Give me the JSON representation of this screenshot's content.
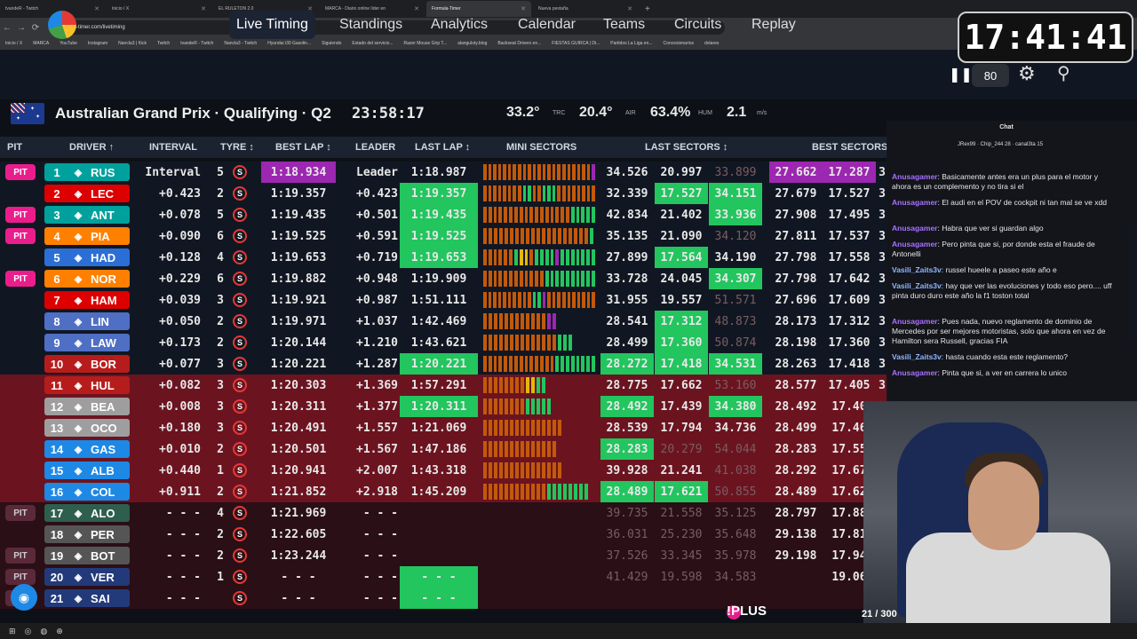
{
  "browser": {
    "tabs": [
      {
        "label": "tvandeR - Twitch",
        "active": false
      },
      {
        "label": "Inicio / X",
        "active": false
      },
      {
        "label": "EL RULETON 2.0",
        "active": false
      },
      {
        "label": "MARCA - Diario online líder en",
        "active": false
      },
      {
        "label": "Formula-Timer",
        "active": true
      },
      {
        "label": "Nueva pestaña",
        "active": false
      }
    ],
    "url": "formula-timer.com/livetiming",
    "bookmarks": [
      "Inicio / X",
      "MARCA",
      "YouTube",
      "Instagram",
      "Nancla3 | Kick",
      "Twitch",
      "tvandeR - Twitch",
      "Nancla3 - Twitch",
      "Hyundai i30 Gasolin...",
      "Siguiendo",
      "Estado del servicio...",
      "Razer Mouse Grip T...",
      "alanguloty.blog",
      "Backseat Drivers en...",
      "FIESTAS GUIRCA | Di...",
      "Partidos La Liga en...",
      "Concesionarios",
      "dolares"
    ]
  },
  "overlay_clock": "17:41:41",
  "app": {
    "nav": [
      "Live Timing",
      "Standings",
      "Analytics",
      "Calendar",
      "Teams",
      "Circuits",
      "Replay"
    ],
    "active_nav": "Live Timing",
    "playback_rate": "80"
  },
  "session": {
    "name": "Australian Grand Prix · Qualifying · Q2",
    "remaining": "23:58:17",
    "track_temp": "33.2°",
    "track_label": "TRC",
    "air_temp": "20.4°",
    "air_label": "AIR",
    "humidity": "63.4%",
    "hum_label": "HUM",
    "wind": "2.1",
    "wind_label": "m/s"
  },
  "columns": {
    "pit": "PIT",
    "driver": "DRIVER ↑",
    "interval": "INTERVAL",
    "tyre": "TYRE ↕",
    "best": "BEST LAP ↕",
    "leader": "LEADER",
    "last": "LAST LAP ↕",
    "mini": "MINI SECTORS",
    "last_sectors": "LAST SECTORS ↕",
    "best_sectors": "BEST SECTORS"
  },
  "rows": [
    {
      "pit": "PIT",
      "pos": "1",
      "code": "RUS",
      "team": "#00a19c",
      "int": "Interval",
      "tyre": "5",
      "best": "1:18.934",
      "bestPurple": true,
      "lead": "Leader",
      "last": "1:18.987",
      "lastGreen": false,
      "ls": [
        "34.526",
        "20.997",
        "33.899"
      ],
      "lsc": [
        "",
        "",
        "dim"
      ],
      "bs": [
        "27.662",
        "17.287",
        "3"
      ],
      "bsc": [
        "purple",
        "purple",
        ""
      ],
      "status": "norm"
    },
    {
      "pit": "",
      "pos": "2",
      "code": "LEC",
      "team": "#dc0000",
      "int": "+0.423",
      "tyre": "2",
      "best": "1:19.357",
      "lead": "+0.423",
      "last": "1:19.357",
      "lastGreen": true,
      "ls": [
        "32.339",
        "17.527",
        "34.151"
      ],
      "lsc": [
        "",
        "green",
        "green"
      ],
      "bs": [
        "27.679",
        "17.527",
        "3"
      ],
      "bsc": [
        "",
        "",
        ""
      ],
      "status": "norm"
    },
    {
      "pit": "PIT",
      "pos": "3",
      "code": "ANT",
      "team": "#00a19c",
      "int": "+0.078",
      "tyre": "5",
      "best": "1:19.435",
      "lead": "+0.501",
      "last": "1:19.435",
      "lastGreen": true,
      "ls": [
        "42.834",
        "21.402",
        "33.936"
      ],
      "lsc": [
        "",
        "",
        "green"
      ],
      "bs": [
        "27.908",
        "17.495",
        "3"
      ],
      "bsc": [
        "",
        "",
        ""
      ],
      "status": "norm"
    },
    {
      "pit": "PIT",
      "pos": "4",
      "code": "PIA",
      "team": "#ff8000",
      "int": "+0.090",
      "tyre": "6",
      "best": "1:19.525",
      "lead": "+0.591",
      "last": "1:19.525",
      "lastGreen": true,
      "ls": [
        "35.135",
        "21.090",
        "34.120"
      ],
      "lsc": [
        "",
        "",
        "dim"
      ],
      "bs": [
        "27.811",
        "17.537",
        "3"
      ],
      "bsc": [
        "",
        "",
        ""
      ],
      "status": "norm"
    },
    {
      "pit": "",
      "pos": "5",
      "code": "HAD",
      "team": "#2b6fd6",
      "int": "+0.128",
      "tyre": "4",
      "best": "1:19.653",
      "lead": "+0.719",
      "last": "1:19.653",
      "lastGreen": true,
      "ls": [
        "27.899",
        "17.564",
        "34.190"
      ],
      "lsc": [
        "",
        "green",
        ""
      ],
      "bs": [
        "27.798",
        "17.558",
        "3"
      ],
      "bsc": [
        "",
        "",
        ""
      ],
      "status": "norm"
    },
    {
      "pit": "PIT",
      "pos": "6",
      "code": "NOR",
      "team": "#ff8000",
      "int": "+0.229",
      "tyre": "6",
      "best": "1:19.882",
      "lead": "+0.948",
      "last": "1:19.909",
      "lastGreen": false,
      "ls": [
        "33.728",
        "24.045",
        "34.307"
      ],
      "lsc": [
        "",
        "",
        "green"
      ],
      "bs": [
        "27.798",
        "17.642",
        "3"
      ],
      "bsc": [
        "",
        "",
        ""
      ],
      "status": "norm"
    },
    {
      "pit": "",
      "pos": "7",
      "code": "HAM",
      "team": "#dc0000",
      "int": "+0.039",
      "tyre": "3",
      "best": "1:19.921",
      "lead": "+0.987",
      "last": "1:51.111",
      "lastGreen": false,
      "ls": [
        "31.955",
        "19.557",
        "51.571"
      ],
      "lsc": [
        "",
        "",
        "dim"
      ],
      "bs": [
        "27.696",
        "17.609",
        "3"
      ],
      "bsc": [
        "",
        "",
        ""
      ],
      "status": "norm"
    },
    {
      "pit": "",
      "pos": "8",
      "code": "LIN",
      "team": "#4f6fc4",
      "int": "+0.050",
      "tyre": "2",
      "best": "1:19.971",
      "lead": "+1.037",
      "last": "1:42.469",
      "lastGreen": false,
      "ls": [
        "28.541",
        "17.312",
        "48.873"
      ],
      "lsc": [
        "",
        "green",
        "dim"
      ],
      "bs": [
        "28.173",
        "17.312",
        "3"
      ],
      "bsc": [
        "",
        "",
        ""
      ],
      "status": "norm"
    },
    {
      "pit": "",
      "pos": "9",
      "code": "LAW",
      "team": "#4f6fc4",
      "int": "+0.173",
      "tyre": "2",
      "best": "1:20.144",
      "lead": "+1.210",
      "last": "1:43.621",
      "lastGreen": false,
      "ls": [
        "28.499",
        "17.360",
        "50.874"
      ],
      "lsc": [
        "",
        "green",
        "dim"
      ],
      "bs": [
        "28.198",
        "17.360",
        "3"
      ],
      "bsc": [
        "",
        "",
        ""
      ],
      "status": "norm"
    },
    {
      "pit": "",
      "pos": "10",
      "code": "BOR",
      "team": "#b71c1c",
      "int": "+0.077",
      "tyre": "3",
      "best": "1:20.221",
      "lead": "+1.287",
      "last": "1:20.221",
      "lastGreen": true,
      "ls": [
        "28.272",
        "17.418",
        "34.531"
      ],
      "lsc": [
        "green",
        "green",
        "green"
      ],
      "bs": [
        "28.263",
        "17.418",
        "3"
      ],
      "bsc": [
        "",
        "",
        ""
      ],
      "status": "norm"
    },
    {
      "pit": "",
      "pos": "11",
      "code": "HUL",
      "team": "#b71c1c",
      "int": "+0.082",
      "tyre": "3",
      "best": "1:20.303",
      "lead": "+1.369",
      "last": "1:57.291",
      "lastGreen": false,
      "ls": [
        "28.775",
        "17.662",
        "53.160"
      ],
      "lsc": [
        "",
        "",
        "dim"
      ],
      "bs": [
        "28.577",
        "17.405",
        "3"
      ],
      "bsc": [
        "",
        "",
        ""
      ],
      "status": "elim"
    },
    {
      "pit": "",
      "pos": "12",
      "code": "BEA",
      "team": "#9e9e9e",
      "int": "+0.008",
      "tyre": "3",
      "best": "1:20.311",
      "lead": "+1.377",
      "last": "1:20.311",
      "lastGreen": true,
      "ls": [
        "28.492",
        "17.439",
        "34.380"
      ],
      "lsc": [
        "green",
        "",
        "green"
      ],
      "bs": [
        "28.492",
        "17.40",
        ""
      ],
      "bsc": [
        "",
        "",
        ""
      ],
      "status": "elim"
    },
    {
      "pit": "",
      "pos": "13",
      "code": "OCO",
      "team": "#9e9e9e",
      "int": "+0.180",
      "tyre": "3",
      "best": "1:20.491",
      "lead": "+1.557",
      "last": "1:21.069",
      "lastGreen": false,
      "ls": [
        "28.539",
        "17.794",
        "34.736"
      ],
      "lsc": [
        "",
        "",
        ""
      ],
      "bs": [
        "28.499",
        "17.46",
        ""
      ],
      "bsc": [
        "",
        "",
        ""
      ],
      "status": "elim"
    },
    {
      "pit": "",
      "pos": "14",
      "code": "GAS",
      "team": "#1e88e5",
      "int": "+0.010",
      "tyre": "2",
      "best": "1:20.501",
      "lead": "+1.567",
      "last": "1:47.186",
      "lastGreen": false,
      "ls": [
        "28.283",
        "20.279",
        "54.044"
      ],
      "lsc": [
        "green",
        "dim",
        "dim"
      ],
      "bs": [
        "28.283",
        "17.55",
        ""
      ],
      "bsc": [
        "",
        "",
        ""
      ],
      "status": "elim"
    },
    {
      "pit": "",
      "pos": "15",
      "code": "ALB",
      "team": "#1e88e5",
      "int": "+0.440",
      "tyre": "1",
      "best": "1:20.941",
      "lead": "+2.007",
      "last": "1:43.318",
      "lastGreen": false,
      "ls": [
        "39.928",
        "21.241",
        "41.038"
      ],
      "lsc": [
        "",
        "",
        "dim"
      ],
      "bs": [
        "28.292",
        "17.67",
        ""
      ],
      "bsc": [
        "",
        "",
        ""
      ],
      "status": "elim"
    },
    {
      "pit": "",
      "pos": "16",
      "code": "COL",
      "team": "#1e88e5",
      "int": "+0.911",
      "tyre": "2",
      "best": "1:21.852",
      "lead": "+2.918",
      "last": "1:45.209",
      "lastGreen": false,
      "ls": [
        "28.489",
        "17.621",
        "50.855"
      ],
      "lsc": [
        "green",
        "green",
        "dim"
      ],
      "bs": [
        "28.489",
        "17.62",
        ""
      ],
      "bsc": [
        "",
        "",
        ""
      ],
      "status": "elim"
    },
    {
      "pit": "PIT",
      "pos": "17",
      "code": "ALO",
      "team": "#2e5e4e",
      "int": "- - -",
      "tyre": "4",
      "best": "1:21.969",
      "lead": "- - -",
      "last": "",
      "lastGreen": false,
      "ls": [
        "39.735",
        "21.558",
        "35.125"
      ],
      "lsc": [
        "dim",
        "dim",
        "dim"
      ],
      "bs": [
        "28.797",
        "17.88",
        ""
      ],
      "bsc": [
        "",
        "",
        ""
      ],
      "status": "out"
    },
    {
      "pit": "",
      "pos": "18",
      "code": "PER",
      "team": "#555",
      "int": "- - -",
      "tyre": "2",
      "best": "1:22.605",
      "lead": "- - -",
      "last": "",
      "lastGreen": false,
      "ls": [
        "36.031",
        "25.230",
        "35.648"
      ],
      "lsc": [
        "dim",
        "dim",
        "dim"
      ],
      "bs": [
        "29.138",
        "17.81",
        ""
      ],
      "bsc": [
        "",
        "",
        ""
      ],
      "status": "out"
    },
    {
      "pit": "PIT",
      "pos": "19",
      "code": "BOT",
      "team": "#555",
      "int": "- - -",
      "tyre": "2",
      "best": "1:23.244",
      "lead": "- - -",
      "last": "",
      "lastGreen": false,
      "ls": [
        "37.526",
        "33.345",
        "35.978"
      ],
      "lsc": [
        "dim",
        "dim",
        "dim"
      ],
      "bs": [
        "29.198",
        "17.94",
        ""
      ],
      "bsc": [
        "",
        "",
        ""
      ],
      "status": "out"
    },
    {
      "pit": "PIT",
      "pos": "20",
      "code": "VER",
      "team": "#233a7a",
      "int": "- - -",
      "tyre": "1",
      "best": "- - -",
      "lead": "- - -",
      "last": "- - -",
      "lastGreen": true,
      "ls": [
        "41.429",
        "19.598",
        "34.583"
      ],
      "lsc": [
        "dim",
        "dim",
        "dim"
      ],
      "bs": [
        "",
        "19.06",
        ""
      ],
      "bsc": [
        "",
        "",
        ""
      ],
      "status": "out"
    },
    {
      "pit": "PIT",
      "pos": "21",
      "code": "SAI",
      "team": "#233a7a",
      "int": "- - -",
      "tyre": "",
      "best": "- - -",
      "lead": "- - -",
      "last": "- - -",
      "lastGreen": true,
      "ls": [
        "",
        "",
        ""
      ],
      "lsc": [
        "dim",
        "dim",
        "dim"
      ],
      "bs": [
        "",
        "",
        ""
      ],
      "bsc": [
        "",
        "",
        ""
      ],
      "status": "out"
    }
  ],
  "chat": {
    "title": "Chat",
    "top": "JRex99 · Chip_244 28 · canal3ta 15",
    "messages": [
      {
        "user": "Anusagamer",
        "text": "Basicamente antes era un plus para el motor y ahora es un complemento y no tira si el"
      },
      {
        "user": "Anusagamer",
        "text": "El audi en el POV de cockpit ni tan mal se ve xdd"
      },
      {
        "user": "Anusagamer",
        "text": "Habra que ver si guardan algo"
      },
      {
        "user": "Anusagamer",
        "text": "Pero pinta que si, por donde esta el fraude de Antonelli"
      },
      {
        "user": "Vasili_Zaits3v",
        "text": "russel hueele a paseo este año e"
      },
      {
        "user": "Vasili_Zaits3v",
        "text": "hay que ver las evoluciones y todo eso pero.... uff pinta duro duro este año la f1 toston total"
      },
      {
        "user": "Anusagamer",
        "text": "Pues nada, nuevo reglamento de dominio de Mercedes por ser mejores motoristas, solo que ahora en vez de Hamilton sera Russell, gracias FIA"
      },
      {
        "user": "Vasili_Zaits3v",
        "text": "hasta cuando esta este reglamento?"
      },
      {
        "user": "Anusagamer",
        "text": "Pinta que si, a ver en carrera lo unico"
      }
    ]
  },
  "stream": {
    "plus": "!PLUS",
    "counter": "21 / 300"
  }
}
